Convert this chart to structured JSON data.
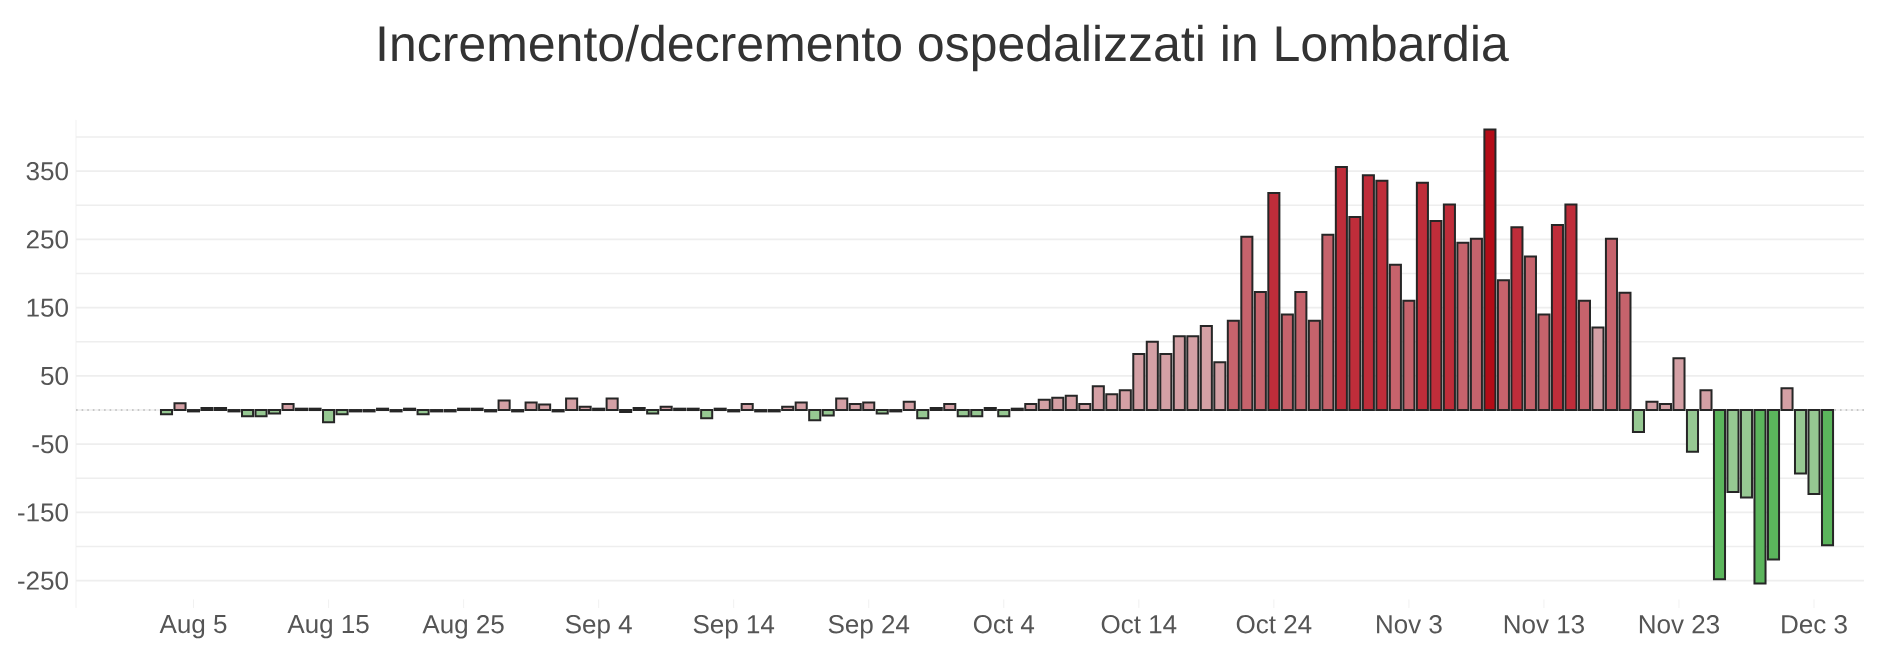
{
  "chart_data": {
    "type": "bar",
    "title": "Incremento/decremento ospedalizzati in Lombardia",
    "categories": [
      null,
      null,
      "Aug 5",
      null,
      null,
      null,
      null,
      null,
      null,
      null,
      null,
      null,
      "Aug 15",
      null,
      null,
      null,
      null,
      null,
      null,
      null,
      null,
      null,
      "Aug 25",
      null,
      null,
      null,
      null,
      null,
      null,
      null,
      null,
      null,
      "Sep 4",
      null,
      null,
      null,
      null,
      null,
      null,
      null,
      null,
      null,
      "Sep 14",
      null,
      null,
      null,
      null,
      null,
      null,
      null,
      null,
      null,
      "Sep 24",
      null,
      null,
      null,
      null,
      null,
      null,
      null,
      null,
      null,
      "Oct 4",
      null,
      null,
      null,
      null,
      null,
      null,
      null,
      null,
      null,
      "Oct 14",
      null,
      null,
      null,
      null,
      null,
      null,
      null,
      null,
      null,
      "Oct 24",
      null,
      null,
      null,
      null,
      null,
      null,
      null,
      null,
      null,
      "Nov 3",
      null,
      null,
      null,
      null,
      null,
      null,
      null,
      null,
      null,
      "Nov 13",
      null,
      null,
      null,
      null,
      null,
      null,
      null,
      null,
      null,
      "Nov 23",
      null,
      null,
      null,
      null,
      null,
      null,
      null,
      null,
      null,
      "Dec 3",
      null
    ],
    "values": [
      -6,
      10,
      -2,
      3,
      3,
      -2,
      -9,
      -9,
      -5,
      9,
      2,
      2,
      -18,
      -6,
      -2,
      -2,
      2,
      -2,
      2,
      -6,
      -2,
      -2,
      2,
      2,
      -2,
      14,
      -2,
      11,
      8,
      -2,
      17,
      5,
      2,
      17,
      -3,
      3,
      -5,
      5,
      2,
      2,
      -12,
      2,
      -2,
      9,
      -2,
      -2,
      5,
      11,
      -15,
      -8,
      17,
      9,
      11,
      -5,
      -2,
      12,
      -12,
      3,
      9,
      -9,
      -9,
      3,
      -9,
      2,
      9,
      15,
      18,
      21,
      9,
      35,
      23,
      29,
      82,
      100,
      82,
      108,
      108,
      123,
      70,
      131,
      254,
      173,
      318,
      140,
      173,
      131,
      257,
      356,
      283,
      344,
      336,
      213,
      160,
      333,
      277,
      301,
      245,
      251,
      411,
      190,
      268,
      225,
      140,
      271,
      301,
      160,
      121,
      251,
      172,
      -32,
      12,
      9,
      76,
      -61,
      29,
      -248,
      -120,
      -128,
      -254,
      -219,
      32,
      -93,
      -123,
      -198
    ],
    "colors": [
      "#96c892",
      "#d4a0a5",
      "#96c892",
      "#d4a0a5",
      "#d4a0a5",
      "#96c892",
      "#96c892",
      "#96c892",
      "#96c892",
      "#d4a0a5",
      "#d4a0a5",
      "#d4a0a5",
      "#96c892",
      "#96c892",
      "#96c892",
      "#96c892",
      "#d4a0a5",
      "#96c892",
      "#d4a0a5",
      "#96c892",
      "#96c892",
      "#96c892",
      "#d4a0a5",
      "#d4a0a5",
      "#96c892",
      "#d4a0a5",
      "#96c892",
      "#d4a0a5",
      "#d4a0a5",
      "#96c892",
      "#d4a0a5",
      "#d4a0a5",
      "#d4a0a5",
      "#d4a0a5",
      "#96c892",
      "#d4a0a5",
      "#96c892",
      "#d4a0a5",
      "#d4a0a5",
      "#d4a0a5",
      "#96c892",
      "#d4a0a5",
      "#96c892",
      "#d4a0a5",
      "#96c892",
      "#96c892",
      "#d4a0a5",
      "#d4a0a5",
      "#96c892",
      "#96c892",
      "#d4a0a5",
      "#d4a0a5",
      "#d4a0a5",
      "#96c892",
      "#96c892",
      "#d4a0a5",
      "#96c892",
      "#d4a0a5",
      "#d4a0a5",
      "#96c892",
      "#96c892",
      "#d4a0a5",
      "#96c892",
      "#d4a0a5",
      "#d4a0a5",
      "#d4a0a5",
      "#d4a0a5",
      "#d4a0a5",
      "#d4a0a5",
      "#d4a0a5",
      "#d4a0a5",
      "#d4a0a5",
      "#d4a0a5",
      "#d4a0a5",
      "#d4a0a5",
      "#d4a0a5",
      "#d4a0a5",
      "#d4a0a5",
      "#d4a0a5",
      "#c6636c",
      "#c6636c",
      "#c6636c",
      "#bf2d3a",
      "#c6636c",
      "#c6636c",
      "#c6636c",
      "#c6636c",
      "#bf2d3a",
      "#bf2d3a",
      "#bf2d3a",
      "#bf2d3a",
      "#c6636c",
      "#c6636c",
      "#bf2d3a",
      "#bf2d3a",
      "#bf2d3a",
      "#c6636c",
      "#c6636c",
      "#b30c17",
      "#c6636c",
      "#bf2d3a",
      "#c6636c",
      "#c6636c",
      "#bf2d3a",
      "#bf2d3a",
      "#c6636c",
      "#d4a0a5",
      "#c6636c",
      "#c6636c",
      "#96c892",
      "#d4a0a5",
      "#d4a0a5",
      "#d4a0a5",
      "#96c892",
      "#d4a0a5",
      "#5bb55c",
      "#96c892",
      "#96c892",
      "#5bb55c",
      "#5bb55c",
      "#d4a0a5",
      "#96c892",
      "#96c892",
      "#5bb55c"
    ],
    "ylim": [
      -290,
      425
    ],
    "yticks": [
      {
        "value": -250,
        "label": "-250"
      },
      {
        "value": -200,
        "label": null
      },
      {
        "value": -150,
        "label": "-150"
      },
      {
        "value": -100,
        "label": null
      },
      {
        "value": -50,
        "label": "-50"
      },
      {
        "value": 0,
        "label": null
      },
      {
        "value": 50,
        "label": "50"
      },
      {
        "value": 100,
        "label": null
      },
      {
        "value": 150,
        "label": "150"
      },
      {
        "value": 200,
        "label": null
      },
      {
        "value": 250,
        "label": "250"
      },
      {
        "value": 300,
        "label": null
      },
      {
        "value": 350,
        "label": "350"
      },
      {
        "value": 400,
        "label": null
      }
    ],
    "grid": "y",
    "ref_lines": [
      {
        "axis": "y",
        "value": 0,
        "color": "#bbbbbb",
        "line_style": "dotted"
      }
    ]
  }
}
